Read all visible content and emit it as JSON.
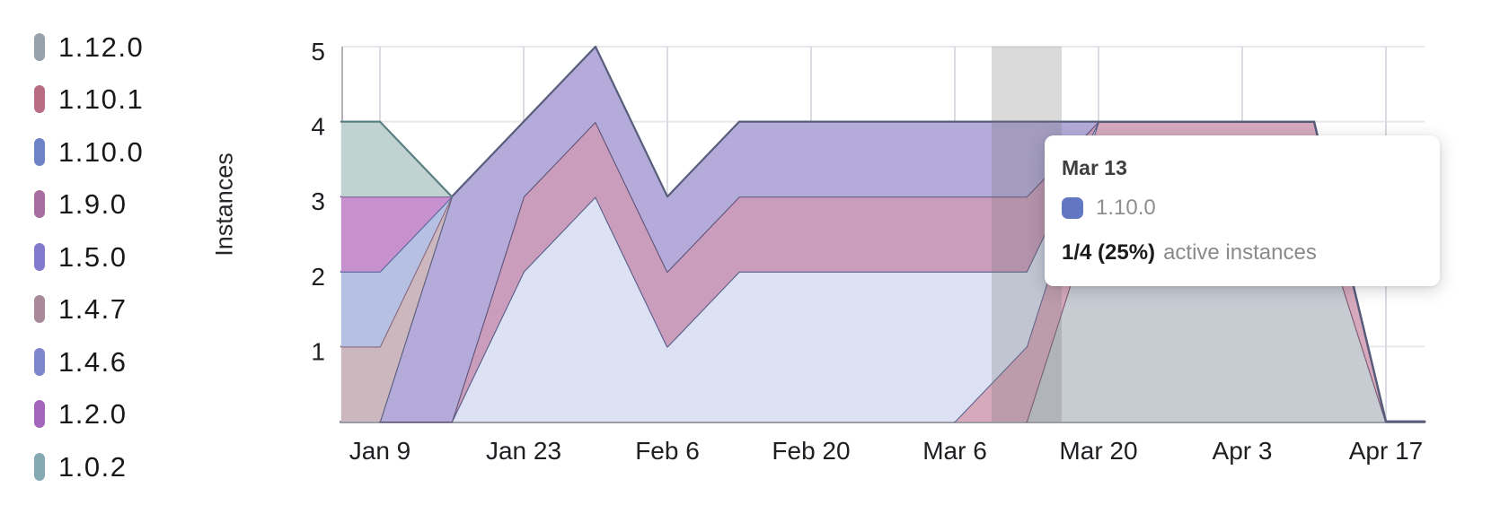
{
  "page": {
    "background": "#ffffff"
  },
  "legend": {
    "items": [
      {
        "label": "1.12.0",
        "color": "#97a1ac"
      },
      {
        "label": "1.10.1",
        "color": "#b96d85"
      },
      {
        "label": "1.10.0",
        "color": "#6c84c7"
      },
      {
        "label": "1.9.0",
        "color": "#a76ca0"
      },
      {
        "label": "1.5.0",
        "color": "#827acd"
      },
      {
        "label": "1.4.7",
        "color": "#a98a9a"
      },
      {
        "label": "1.4.6",
        "color": "#7f86cc"
      },
      {
        "label": "1.2.0",
        "color": "#a366bb"
      },
      {
        "label": "1.0.2",
        "color": "#85aab2"
      }
    ]
  },
  "chart_data": {
    "type": "area",
    "stacked": true,
    "title": "",
    "xlabel": "",
    "ylabel": "Instances",
    "ylim": [
      0,
      5
    ],
    "y_ticks": [
      1,
      2,
      3,
      4,
      5
    ],
    "x_tick_labels": [
      "Jan 9",
      "Jan 23",
      "Feb 6",
      "Feb 20",
      "Mar 6",
      "Mar 20",
      "Apr 3",
      "Apr 17"
    ],
    "x_tick_weeks": [
      0,
      2,
      4,
      6,
      8,
      10,
      12,
      14
    ],
    "grid": true,
    "legend_position": "left",
    "stack_order": "bottom-to-top",
    "points": [
      "Jan 5",
      "Jan 9",
      "Jan 16",
      "Jan 23",
      "Jan 30",
      "Feb 6",
      "Feb 13",
      "Feb 20",
      "Feb 27",
      "Mar 6",
      "Mar 13",
      "Mar 20",
      "Mar 27",
      "Apr 3",
      "Apr 10",
      "Apr 17",
      "Apr 21"
    ],
    "weeks": [
      -0.54,
      0,
      1,
      2,
      3,
      4,
      5,
      6,
      7,
      8,
      9,
      10,
      11,
      12,
      13,
      14,
      14.54
    ],
    "series": [
      {
        "name": "1.12.0",
        "color": "#97a1ac",
        "fill": "#c7cbd2",
        "stroke": "#7a5a72",
        "values": [
          null,
          null,
          null,
          null,
          null,
          null,
          null,
          null,
          null,
          null,
          0,
          3,
          3,
          3,
          3,
          0,
          0
        ]
      },
      {
        "name": "1.10.1",
        "color": "#b96d85",
        "fill": "#d6a9bd",
        "stroke": "#5f608f",
        "values": [
          null,
          null,
          null,
          null,
          null,
          null,
          null,
          null,
          null,
          0,
          1,
          1,
          1,
          1,
          1,
          0,
          0
        ]
      },
      {
        "name": "1.10.0",
        "color": "#6c84c7",
        "fill": "#dce2f3",
        "stroke": "#575d87",
        "values": [
          null,
          0,
          0,
          2,
          3,
          1,
          2,
          2,
          2,
          2,
          1,
          0,
          0,
          0,
          0,
          0,
          0
        ]
      },
      {
        "name": "1.9.0",
        "color": "#a76ca0",
        "fill": "#cb9dbd",
        "stroke": "#5e5276",
        "values": [
          null,
          0,
          0,
          1,
          1,
          1,
          1,
          1,
          1,
          1,
          1,
          0,
          0,
          0,
          0,
          0,
          0
        ]
      },
      {
        "name": "1.5.0",
        "color": "#827acd",
        "fill": "#b4abda",
        "stroke": "#575d7a",
        "values": [
          null,
          0,
          3,
          1,
          1,
          1,
          1,
          1,
          1,
          1,
          1,
          0,
          0,
          0,
          0,
          0,
          0
        ]
      },
      {
        "name": "1.4.7",
        "color": "#a98a9a",
        "fill": "#ccb7bf",
        "stroke": "#8a687c",
        "values": [
          1,
          1,
          0,
          null,
          null,
          null,
          null,
          null,
          null,
          null,
          null,
          null,
          null,
          null,
          null,
          null,
          null
        ]
      },
      {
        "name": "1.4.6",
        "color": "#7f86cc",
        "fill": "#b6c0e2",
        "stroke": "#5a64a0",
        "values": [
          1,
          1,
          0,
          null,
          null,
          null,
          null,
          null,
          null,
          null,
          null,
          null,
          null,
          null,
          null,
          null,
          null
        ]
      },
      {
        "name": "1.2.0",
        "color": "#a366bb",
        "fill": "#c791cd",
        "stroke": "#7d4f96",
        "values": [
          1,
          1,
          0,
          null,
          null,
          null,
          null,
          null,
          null,
          null,
          null,
          null,
          null,
          null,
          null,
          null,
          null
        ]
      },
      {
        "name": "1.0.2",
        "color": "#85aab2",
        "fill": "#c0d3d0",
        "stroke": "#5a7f82",
        "values": [
          1,
          1,
          0,
          null,
          null,
          null,
          null,
          null,
          null,
          null,
          null,
          null,
          null,
          null,
          null,
          null,
          null
        ]
      }
    ],
    "hover": {
      "point_index": 10,
      "point_label": "Mar 13"
    }
  },
  "tooltip": {
    "title": "Mar 13",
    "series_label": "1.10.0",
    "swatch_color": "#6277c2",
    "value": "1/4 (25%)",
    "suffix": "active instances"
  }
}
